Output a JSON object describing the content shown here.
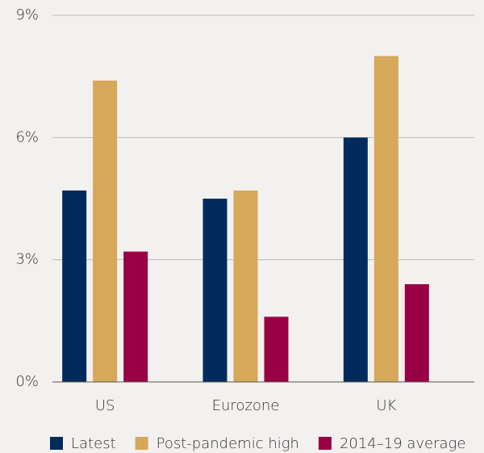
{
  "chart_data": {
    "type": "bar",
    "categories": [
      "US",
      "Eurozone",
      "UK"
    ],
    "series": [
      {
        "name": "Latest",
        "color": "#002b5c",
        "values": [
          4.7,
          4.5,
          6.0
        ]
      },
      {
        "name": "Post-pandemic high",
        "color": "#d6a85a",
        "values": [
          7.4,
          4.7,
          8.0
        ]
      },
      {
        "name": "2014–19 average",
        "color": "#990044",
        "values": [
          3.2,
          1.6,
          2.4
        ]
      }
    ],
    "ylim": [
      0,
      9
    ],
    "yticks": [
      {
        "value": 0,
        "label": "0%"
      },
      {
        "value": 3,
        "label": "3%"
      },
      {
        "value": 6,
        "label": "6%"
      },
      {
        "value": 9,
        "label": "9%"
      }
    ],
    "grid": true,
    "legend": "bottom"
  }
}
